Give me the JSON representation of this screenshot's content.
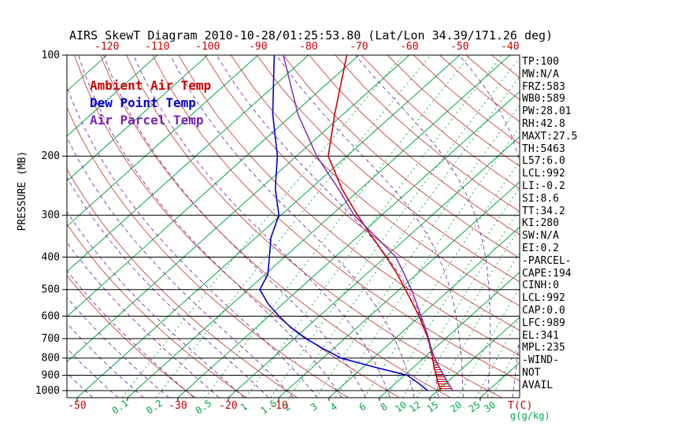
{
  "title": "AIRS SkewT Diagram 2010-10-28/01:25:53.80 (Lat/Lon 34.39/171.26 deg)",
  "legend": [
    {
      "label": "Ambient Air Temp",
      "color": "#cc0000"
    },
    {
      "label": "Dew Point Temp",
      "color": "#0000cc"
    },
    {
      "label": "Air Parcel Temp",
      "color": "#7722bb"
    }
  ],
  "axes": {
    "pressure_label": "PRESSURE (MB)",
    "pressure_ticks": [
      100,
      200,
      300,
      400,
      500,
      600,
      700,
      800,
      900,
      1000
    ],
    "top_temp_labels": [
      -120,
      -110,
      -100,
      -90,
      -80,
      -70,
      -60,
      -50,
      -40
    ],
    "bottom_temp_labels": [
      -50,
      -30,
      -20,
      -10
    ],
    "temp_unit_label": "T(C)",
    "mixing_ratio_labels": [
      0.1,
      0.2,
      0.5,
      1,
      1.5,
      2,
      3,
      4,
      6,
      8,
      10,
      12,
      15,
      20,
      25,
      30
    ],
    "mixing_unit_label": "g(g/kg)"
  },
  "stats": [
    "TP:100",
    "MW:N/A",
    "FRZ:583",
    "WB0:589",
    "PW:28.01",
    "RH:42.8",
    "MAXT:27.5",
    "TH:5463",
    "L57:6.0",
    "LCL:992",
    "LI:-0.2",
    "SI:8.6",
    "TT:34.2",
    "KI:280",
    "SW:N/A",
    "EI:0.2",
    "-PARCEL-",
    "CAPE:194",
    "CINH:0",
    "LCL:992",
    "CAP:0.0",
    "LFC:989",
    "EL:341",
    "MPL:235",
    "-WIND-",
    "NOT",
    "AVAIL"
  ],
  "chart_data": {
    "type": "line",
    "projection": "skew-t-log-p",
    "pressure_axis": {
      "scale": "log",
      "min": 100,
      "max": 1050,
      "ticks": [
        100,
        200,
        300,
        400,
        500,
        600,
        700,
        800,
        900,
        1000
      ]
    },
    "temp_axis": {
      "unit": "C",
      "surface_label_values": [
        -50,
        -30,
        -20,
        -10
      ],
      "top_label_values": [
        -120,
        -110,
        -100,
        -90,
        -80,
        -70,
        -60,
        -50,
        -40
      ]
    },
    "pressure_levels_mb": [
      1000,
      950,
      900,
      850,
      800,
      750,
      700,
      650,
      600,
      550,
      500,
      450,
      400,
      350,
      300,
      250,
      200,
      150,
      100
    ],
    "series": [
      {
        "name": "Ambient Air Temp",
        "color": "#cc0000",
        "temps_c": [
          20.6,
          18.4,
          16.3,
          14.0,
          11.8,
          9.3,
          6.6,
          3.3,
          -0.2,
          -4.3,
          -8.8,
          -13.8,
          -19.8,
          -26.8,
          -34.8,
          -43.8,
          -53.7,
          -61.7,
          -72.4
        ]
      },
      {
        "name": "Dew Point Temp",
        "color": "#0000cc",
        "temps_c": [
          18.0,
          14.5,
          10.5,
          2.0,
          -6.4,
          -12.0,
          -17.7,
          -23.0,
          -28.0,
          -33.0,
          -37.7,
          -39.5,
          -43.0,
          -47.0,
          -50.4,
          -57.0,
          -63.8,
          -74.0,
          -86.8
        ]
      },
      {
        "name": "Air Parcel Temp",
        "color": "#7722bb",
        "temps_c": [
          23.0,
          20.4,
          17.8,
          15.0,
          12.2,
          9.4,
          6.7,
          3.6,
          0.2,
          -3.5,
          -7.6,
          -12.4,
          -17.9,
          -26.0,
          -35.5,
          -44.5,
          -56.0,
          -69.0,
          -85.0
        ]
      }
    ],
    "hatch_region": {
      "between": [
        "Air Parcel Temp",
        "Ambient Air Temp"
      ],
      "pressure_range_mb": [
        1000,
        800
      ],
      "style": "horizontal-red-hatch",
      "color": "#cc0000"
    },
    "background_lines": {
      "isotherms_c": {
        "start": -120,
        "end": 40,
        "step": 10,
        "color": "#00a848"
      },
      "dry_adiabats_c": {
        "start": -30,
        "end": 170,
        "step": 10,
        "color": "#cc4444"
      },
      "moist_adiabats_c": {
        "start": -60,
        "end": 40,
        "step": 5,
        "color": "#7733aa"
      },
      "mixing_ratio_g_kg": [
        0.1,
        0.2,
        0.5,
        1,
        1.5,
        2,
        3,
        4,
        6,
        8,
        10,
        12,
        15,
        20,
        25,
        30
      ],
      "mixing_ratio_color": "#00a848"
    }
  }
}
